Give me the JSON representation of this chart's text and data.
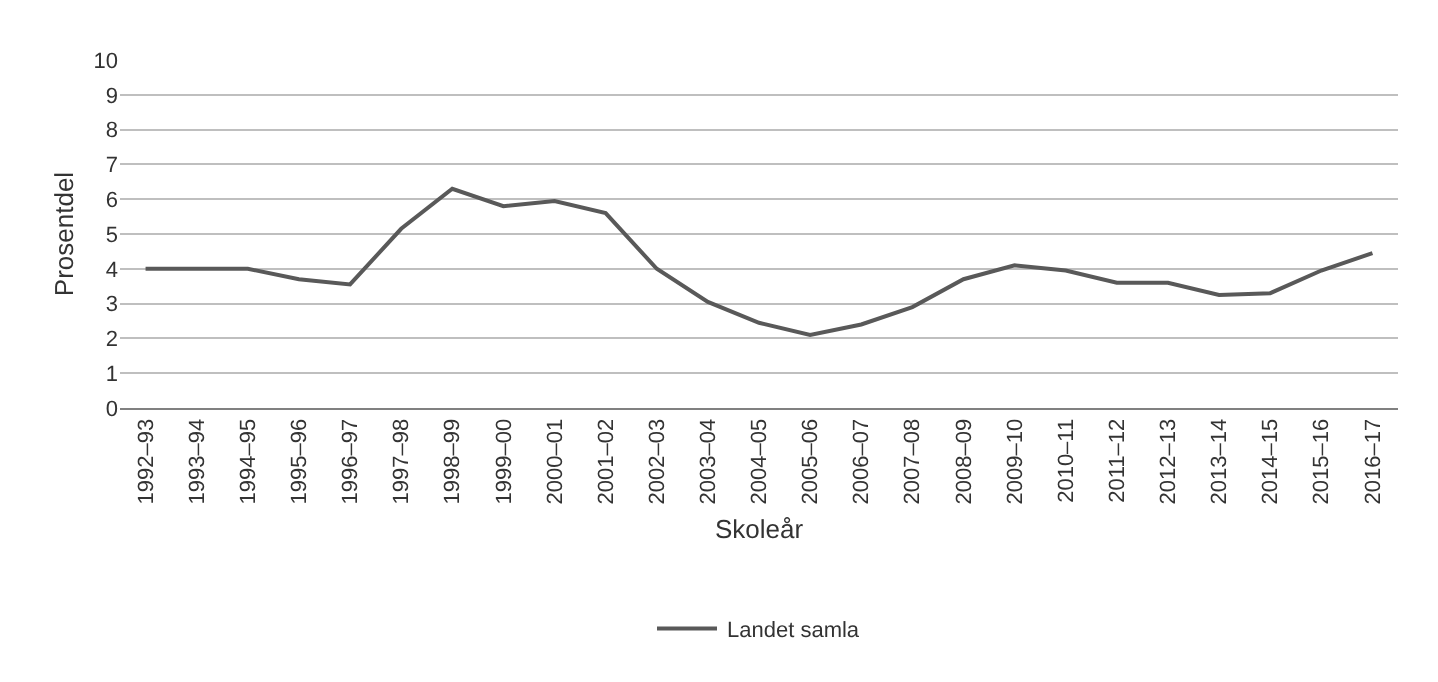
{
  "chart_data": {
    "type": "line",
    "xlabel": "Skoleår",
    "ylabel": "Prosentdel",
    "categories": [
      "1992–93",
      "1993–94",
      "1994–95",
      "1995–96",
      "1996–97",
      "1997–98",
      "1998–99",
      "1999–00",
      "2000–01",
      "2001–02",
      "2002–03",
      "2003–04",
      "2004–05",
      "2005–06",
      "2006–07",
      "2007–08",
      "2008–09",
      "2009–10",
      "2010–11",
      "2011–12",
      "2012–13",
      "2013–14",
      "2014–15",
      "2015–16",
      "2016–17"
    ],
    "series": [
      {
        "name": "Landet samla",
        "color": "#595959",
        "values": [
          4.0,
          4.0,
          4.0,
          3.7,
          3.55,
          5.15,
          6.3,
          5.8,
          5.95,
          5.6,
          4.0,
          3.05,
          2.45,
          2.1,
          2.4,
          2.9,
          3.7,
          4.1,
          3.95,
          3.6,
          3.6,
          3.25,
          3.3,
          3.95,
          4.45
        ]
      }
    ],
    "ylim": [
      0,
      10
    ],
    "yticks": [
      0,
      1,
      2,
      3,
      4,
      5,
      6,
      7,
      8,
      9,
      10
    ],
    "grid": "y",
    "legend": "bottom",
    "marker": "none",
    "line_style": "solid"
  }
}
